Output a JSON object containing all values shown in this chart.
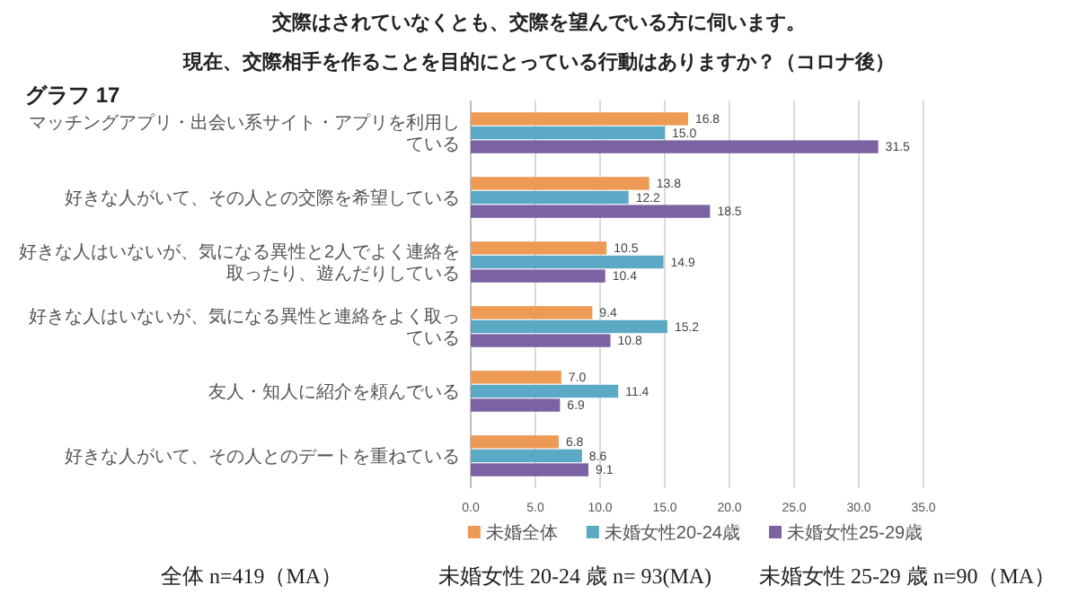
{
  "chart_data": {
    "type": "bar",
    "orientation": "horizontal",
    "title": "交際はされていなくとも、交際を望んでいる方に伺います。",
    "subtitle": "現在、交際相手を作ることを目的にとっている行動はありますか？（コロナ後）",
    "annotations": [
      "グラフ 17",
      "全体 n=419（MA）",
      "未婚女性 20-24 歳 n= 93(MA)",
      "未婚女性 25-29 歳 n=90（MA）"
    ],
    "categories": [
      "マッチングアプリ・出会い系サイト・アプリを利用している",
      "好きな人がいて、その人との交際を希望している",
      "好きな人はいないが、気になる異性と2人でよく連絡を取ったり、遊んだりしている",
      "好きな人はいないが、気になる異性と連絡をよく取っている",
      "友人・知人に紹介を頼んでいる",
      "好きな人がいて、その人とのデートを重ねている"
    ],
    "series": [
      {
        "name": "未婚全体",
        "color": "#ed9a55",
        "values": [
          16.8,
          13.8,
          10.5,
          9.4,
          7.0,
          6.8
        ],
        "value_labels": [
          "16.8",
          "13.8",
          "10.5",
          "9.4",
          "7.0",
          "6.8"
        ]
      },
      {
        "name": "未婚女性20-24歳",
        "color": "#5ba9c4",
        "values": [
          15.0,
          12.2,
          14.9,
          15.2,
          11.4,
          8.6
        ],
        "value_labels": [
          "15.0",
          "12.2",
          "14.9",
          "15.2",
          "11.4",
          "8.6"
        ]
      },
      {
        "name": "未婚女性25-29歳",
        "color": "#7b62a3",
        "values": [
          31.5,
          18.5,
          10.4,
          10.8,
          6.9,
          9.1
        ],
        "value_labels": [
          "31.5",
          "18.5",
          "10.4",
          "10.8",
          "6.9",
          "9.1"
        ]
      }
    ],
    "xlim": [
      0,
      35
    ],
    "xticks": [
      {
        "value": 0,
        "label": "0.0"
      },
      {
        "value": 5,
        "label": "5.0"
      },
      {
        "value": 10,
        "label": "10.0"
      },
      {
        "value": 15,
        "label": "15.0"
      },
      {
        "value": 20,
        "label": "20.0"
      },
      {
        "value": 25,
        "label": "25.0"
      },
      {
        "value": 30,
        "label": "30.0"
      },
      {
        "value": 35,
        "label": "35.0"
      }
    ],
    "grid": "x",
    "legend": "bottom"
  }
}
